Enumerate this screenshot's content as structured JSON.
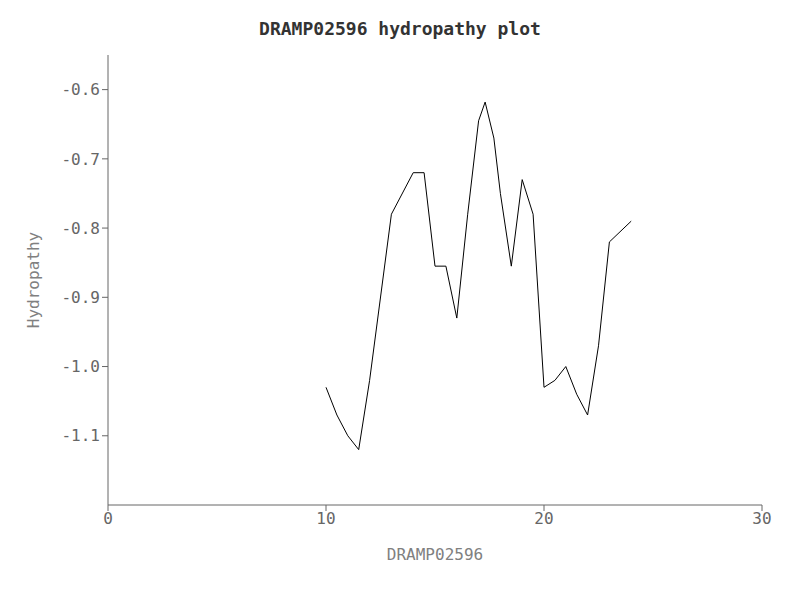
{
  "chart_data": {
    "type": "line",
    "title": "DRAMP02596 hydropathy plot",
    "xlabel": "DRAMP02596",
    "ylabel": "Hydropathy",
    "x": [
      10,
      10.5,
      11,
      11.5,
      12,
      13,
      14,
      14.5,
      15,
      15.5,
      16,
      16.5,
      17,
      17.3,
      17.7,
      18,
      18.5,
      19,
      19.5,
      20,
      20.5,
      21,
      21.5,
      22,
      22.5,
      23,
      24
    ],
    "values": [
      -1.03,
      -1.07,
      -1.1,
      -1.12,
      -1.02,
      -0.78,
      -0.72,
      -0.72,
      -0.855,
      -0.855,
      -0.93,
      -0.78,
      -0.645,
      -0.618,
      -0.67,
      -0.75,
      -0.855,
      -0.73,
      -0.78,
      -1.03,
      -1.02,
      -1.0,
      -1.04,
      -1.07,
      -0.97,
      -0.82,
      -0.79
    ],
    "color": "#000000",
    "xlim": [
      0,
      30
    ],
    "ylim": [
      -1.2,
      -0.55
    ],
    "xticks": [
      0,
      10,
      20,
      30
    ],
    "yticks": [
      -0.6,
      -0.7,
      -0.8,
      -0.9,
      {
        "value": -1.0,
        "label": "-1.0"
      },
      -1.1
    ],
    "grid": false
  }
}
